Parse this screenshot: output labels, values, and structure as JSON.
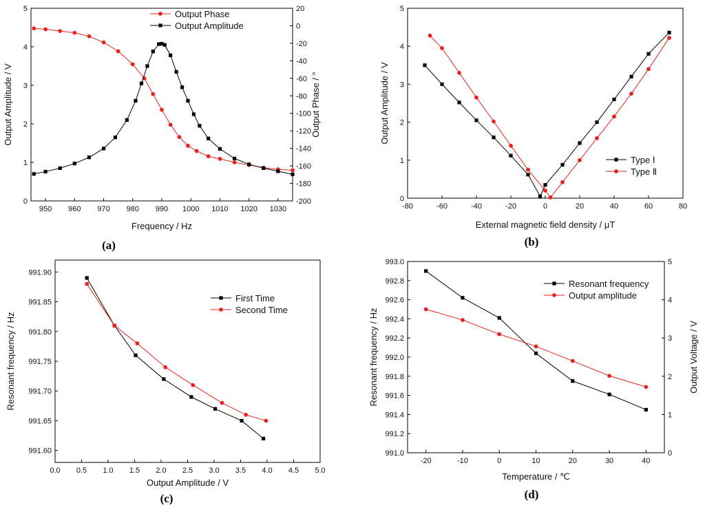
{
  "colors": {
    "black_series": "#000000",
    "red_series": "#e8231f",
    "axis": "#000000"
  },
  "chart_data": [
    {
      "panel": "(a)",
      "type": "line",
      "title": "",
      "xlabel": "Frequency / Hz",
      "ylabel": "Output Amplitude / V",
      "ylabel_right": "Output Phase / °",
      "xlim": [
        945,
        1035
      ],
      "ylim": [
        0,
        5
      ],
      "ylim_right": [
        -200,
        20
      ],
      "xticks": [
        "950",
        "960",
        "970",
        "980",
        "990",
        "1000",
        "1010",
        "1020",
        "1030"
      ],
      "yticks": [
        "0",
        "1",
        "2",
        "3",
        "4",
        "5"
      ],
      "yticks_right": [
        "-200",
        "-180",
        "-160",
        "-140",
        "-120",
        "-100",
        "-80",
        "-60",
        "-40",
        "-20",
        "0",
        "20"
      ],
      "legend": [
        "Output Phase",
        "Output Amplitude"
      ],
      "series": [
        {
          "name": "Output Phase",
          "color": "red",
          "marker": "circle",
          "axis": "right",
          "x": [
            946,
            950,
            955,
            960,
            965,
            970,
            975,
            980,
            984,
            987,
            990,
            993,
            996,
            999,
            1002,
            1006,
            1010,
            1015,
            1020,
            1025,
            1030,
            1035
          ],
          "y": [
            -3,
            -4,
            -6,
            -8,
            -12,
            -19,
            -29,
            -44,
            -60,
            -78,
            -96,
            -113,
            -127,
            -137,
            -143,
            -149,
            -152,
            -156,
            -159,
            -162,
            -164,
            -165
          ]
        },
        {
          "name": "Output Amplitude",
          "color": "black",
          "marker": "square",
          "axis": "left",
          "x": [
            946,
            950,
            955,
            960,
            965,
            970,
            974,
            978,
            981,
            983,
            985,
            987,
            989,
            990,
            991,
            993,
            995,
            997,
            999,
            1001,
            1003,
            1006,
            1010,
            1015,
            1020,
            1025,
            1030,
            1035
          ],
          "y": [
            0.7,
            0.76,
            0.85,
            0.97,
            1.13,
            1.36,
            1.65,
            2.1,
            2.6,
            3.05,
            3.5,
            3.88,
            4.07,
            4.08,
            4.05,
            3.78,
            3.35,
            2.95,
            2.6,
            2.25,
            1.95,
            1.62,
            1.35,
            1.1,
            0.95,
            0.85,
            0.77,
            0.69
          ]
        }
      ]
    },
    {
      "panel": "(b)",
      "type": "line",
      "title": "",
      "xlabel": "External magnetic field density / μT",
      "ylabel": "Output Amplitude / V",
      "xlim": [
        -80,
        80
      ],
      "ylim": [
        0,
        5
      ],
      "xticks": [
        "-80",
        "-60",
        "-40",
        "-20",
        "0",
        "20",
        "40",
        "60",
        "80"
      ],
      "yticks": [
        "0",
        "1",
        "2",
        "3",
        "4",
        "5"
      ],
      "legend": [
        "Type Ⅰ",
        "Type Ⅱ"
      ],
      "series": [
        {
          "name": "Type Ⅰ",
          "color": "black",
          "marker": "square",
          "x": [
            -70,
            -60,
            -50,
            -40,
            -30,
            -20,
            -10,
            -3,
            0,
            10,
            20,
            30,
            40,
            50,
            60,
            72
          ],
          "y": [
            3.5,
            3.0,
            2.52,
            2.05,
            1.6,
            1.12,
            0.62,
            0.05,
            0.35,
            0.88,
            1.45,
            2.0,
            2.6,
            3.2,
            3.8,
            4.36
          ]
        },
        {
          "name": "Type Ⅱ",
          "color": "red",
          "marker": "circle",
          "x": [
            -67,
            -60,
            -50,
            -40,
            -30,
            -20,
            -10,
            0,
            3,
            10,
            20,
            30,
            40,
            50,
            60,
            72
          ],
          "y": [
            4.28,
            3.95,
            3.3,
            2.65,
            2.02,
            1.38,
            0.75,
            0.2,
            0.02,
            0.42,
            1.0,
            1.58,
            2.15,
            2.75,
            3.4,
            4.22
          ]
        }
      ]
    },
    {
      "panel": "(c)",
      "type": "line",
      "title": "",
      "xlabel": "Output Amplitude / V",
      "ylabel": "Resonant frequency / Hz",
      "xlim": [
        0,
        5
      ],
      "ylim": [
        991.58,
        991.92
      ],
      "xticks": [
        "0.0",
        "0.5",
        "1.0",
        "1.5",
        "2.0",
        "2.5",
        "3.0",
        "3.5",
        "4.0",
        "4.5",
        "5.0"
      ],
      "yticks": [
        "991.60",
        "991.65",
        "991.70",
        "991.75",
        "991.80",
        "991.85",
        "991.90"
      ],
      "legend": [
        "First Time",
        "Second Time"
      ],
      "series": [
        {
          "name": "First Time",
          "color": "black",
          "marker": "square",
          "x": [
            0.6,
            1.12,
            1.52,
            2.05,
            2.57,
            3.02,
            3.52,
            3.93
          ],
          "y": [
            991.89,
            991.81,
            991.76,
            991.72,
            991.69,
            991.67,
            991.65,
            991.62
          ]
        },
        {
          "name": "Second Time",
          "color": "red",
          "marker": "circle",
          "x": [
            0.6,
            1.12,
            1.55,
            2.08,
            2.6,
            3.15,
            3.6,
            3.98
          ],
          "y": [
            991.88,
            991.81,
            991.78,
            991.74,
            991.71,
            991.68,
            991.66,
            991.65
          ]
        }
      ]
    },
    {
      "panel": "(d)",
      "type": "line",
      "title": "",
      "xlabel": "Temperature / ℃",
      "ylabel": "Resonant frequency / Hz",
      "ylabel_right": "Output Voltage / V",
      "xlim": [
        -25,
        45
      ],
      "ylim": [
        991.0,
        993.0
      ],
      "ylim_right": [
        0,
        5
      ],
      "xticks": [
        "-20",
        "-10",
        "0",
        "10",
        "20",
        "30",
        "40"
      ],
      "yticks": [
        "991.0",
        "991.2",
        "991.4",
        "991.6",
        "991.8",
        "992.0",
        "992.2",
        "992.4",
        "992.6",
        "992.8",
        "993.0"
      ],
      "yticks_right": [
        "0",
        "1",
        "2",
        "3",
        "4",
        "5"
      ],
      "legend": [
        "Resonant frequency",
        "Output amplitude"
      ],
      "series": [
        {
          "name": "Resonant frequency",
          "color": "black",
          "marker": "square",
          "axis": "left",
          "x": [
            -20,
            -10,
            0,
            10,
            20,
            30,
            40
          ],
          "y": [
            992.9,
            992.62,
            992.41,
            992.04,
            991.75,
            991.61,
            991.45
          ]
        },
        {
          "name": "Output amplitude",
          "color": "red",
          "marker": "circle",
          "axis": "right",
          "x": [
            -20,
            -10,
            0,
            10,
            20,
            30,
            40
          ],
          "y": [
            3.75,
            3.47,
            3.1,
            2.78,
            2.4,
            2.01,
            1.72
          ]
        }
      ]
    }
  ]
}
